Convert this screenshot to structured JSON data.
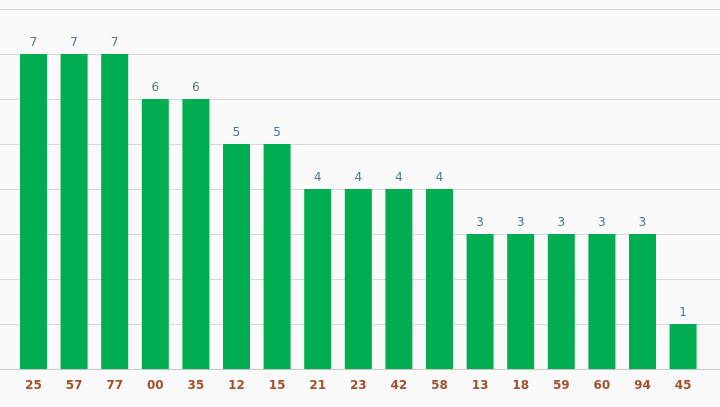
{
  "chart_data": {
    "type": "bar",
    "title": "",
    "xlabel": "",
    "ylabel": "",
    "categories": [
      "25",
      "57",
      "77",
      "00",
      "35",
      "12",
      "15",
      "21",
      "23",
      "42",
      "58",
      "13",
      "18",
      "59",
      "60",
      "94",
      "45"
    ],
    "values": [
      7,
      7,
      7,
      6,
      6,
      5,
      5,
      4,
      4,
      4,
      4,
      3,
      3,
      3,
      3,
      3,
      1
    ],
    "ylim": [
      0,
      8
    ],
    "grid": true,
    "data_labels": true,
    "colors": {
      "bar": "#00ad50",
      "value_label": "#4a7a8c",
      "tick_label": "#a0522d",
      "grid": "#d9d9d9",
      "background": "#fafafa"
    }
  }
}
